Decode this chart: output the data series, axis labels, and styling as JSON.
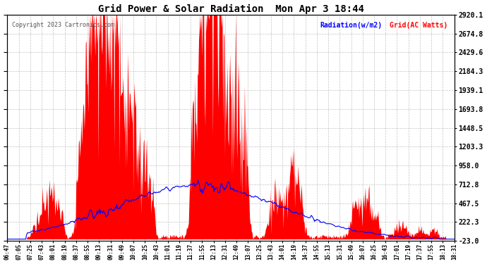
{
  "title": "Grid Power & Solar Radiation  Mon Apr 3 18:44",
  "copyright": "Copyright 2023 Cartronics.com",
  "legend_radiation": "Radiation(w/m2)",
  "legend_grid": "Grid(AC Watts)",
  "ylabel_right_ticks": [
    2920.1,
    2674.8,
    2429.6,
    2184.3,
    1939.1,
    1693.8,
    1448.5,
    1203.3,
    958.0,
    712.8,
    467.5,
    222.3,
    -23.0
  ],
  "ymin": -23.0,
  "ymax": 2920.1,
  "background_color": "#ffffff",
  "grid_color": "#aaaaaa",
  "title_color": "#000000",
  "radiation_color": "#0000ff",
  "grid_ac_color": "#ff0000",
  "xtick_labels": [
    "06:47",
    "07:05",
    "07:25",
    "07:43",
    "08:01",
    "08:19",
    "08:37",
    "08:55",
    "09:13",
    "09:31",
    "09:49",
    "10:07",
    "10:25",
    "10:43",
    "11:01",
    "11:19",
    "11:37",
    "11:55",
    "12:13",
    "12:31",
    "12:49",
    "13:07",
    "13:25",
    "13:43",
    "14:01",
    "14:19",
    "14:37",
    "14:55",
    "15:13",
    "15:31",
    "15:49",
    "16:07",
    "16:25",
    "16:43",
    "17:01",
    "17:19",
    "17:37",
    "17:55",
    "18:13",
    "18:31"
  ]
}
